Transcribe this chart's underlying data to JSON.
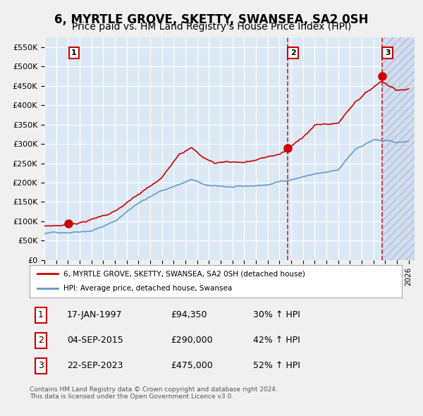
{
  "title": "6, MYRTLE GROVE, SKETTY, SWANSEA, SA2 0SH",
  "subtitle": "Price paid vs. HM Land Registry's House Price Index (HPI)",
  "title_fontsize": 12,
  "subtitle_fontsize": 10,
  "ylabel_values": [
    "£0",
    "£50K",
    "£100K",
    "£150K",
    "£200K",
    "£250K",
    "£300K",
    "£350K",
    "£400K",
    "£450K",
    "£500K",
    "£550K"
  ],
  "ytick_values": [
    0,
    50000,
    100000,
    150000,
    200000,
    250000,
    300000,
    350000,
    400000,
    450000,
    500000,
    550000
  ],
  "ylim": [
    0,
    575000
  ],
  "xlim_start": 1995.0,
  "xlim_end": 2026.5,
  "sale1_date": 1997.04,
  "sale1_price": 94350,
  "sale1_label": "1",
  "sale2_date": 2015.67,
  "sale2_price": 290000,
  "sale2_label": "2",
  "sale3_date": 2023.72,
  "sale3_price": 475000,
  "sale3_label": "3",
  "legend_property": "6, MYRTLE GROVE, SKETTY, SWANSEA, SA2 0SH (detached house)",
  "legend_hpi": "HPI: Average price, detached house, Swansea",
  "table_entries": [
    {
      "num": "1",
      "date": "17-JAN-1997",
      "price": "£94,350",
      "hpi": "30% ↑ HPI"
    },
    {
      "num": "2",
      "date": "04-SEP-2015",
      "price": "£290,000",
      "hpi": "42% ↑ HPI"
    },
    {
      "num": "3",
      "date": "22-SEP-2023",
      "price": "£475,000",
      "hpi": "52% ↑ HPI"
    }
  ],
  "footnote": "Contains HM Land Registry data © Crown copyright and database right 2024.\nThis data is licensed under the Open Government Licence v3.0.",
  "property_color": "#cc0000",
  "hpi_color": "#6699cc",
  "plot_bg_color": "#dce9f5",
  "grid_color": "#ffffff",
  "vline_color": "#cc0000",
  "sale_marker_color": "#cc0000",
  "hpi_anchors_t": [
    1995.0,
    1997.0,
    1999.0,
    2001.0,
    2003.0,
    2005.0,
    2007.5,
    2009.0,
    2010.0,
    2012.0,
    2014.0,
    2016.0,
    2018.0,
    2020.0,
    2021.5,
    2023.0,
    2024.0,
    2025.0,
    2026.0
  ],
  "hpi_anchors_v": [
    68000,
    73000,
    82000,
    105000,
    155000,
    185000,
    215000,
    195000,
    195000,
    190000,
    195000,
    210000,
    225000,
    230000,
    285000,
    310000,
    305000,
    300000,
    302000
  ],
  "prop_anchors_t": [
    1995.0,
    1996.5,
    1997.04,
    1998.0,
    1999.0,
    2001.0,
    2003.0,
    2005.0,
    2006.5,
    2007.5,
    2008.5,
    2009.5,
    2010.5,
    2012.0,
    2013.0,
    2015.0,
    2015.67,
    2016.5,
    2018.0,
    2020.0,
    2021.5,
    2022.5,
    2023.72,
    2024.5,
    2025.0,
    2026.0
  ],
  "prop_anchors_v": [
    88000,
    91000,
    94350,
    100000,
    108000,
    130000,
    170000,
    210000,
    280000,
    295000,
    270000,
    255000,
    260000,
    260000,
    265000,
    280000,
    290000,
    310000,
    355000,
    360000,
    420000,
    445000,
    475000,
    460000,
    455000,
    458000
  ]
}
